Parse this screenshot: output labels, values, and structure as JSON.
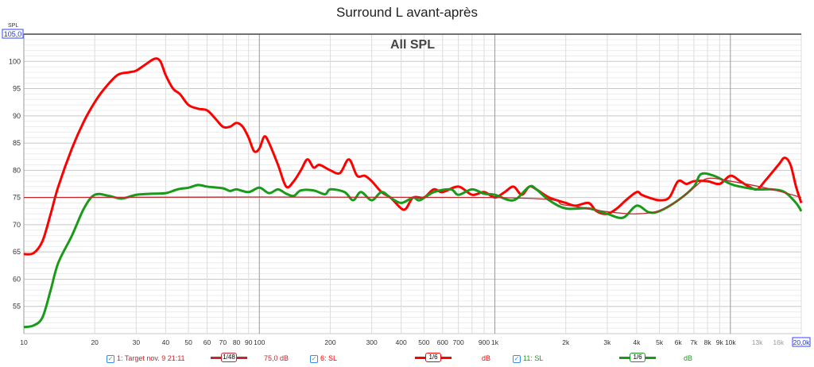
{
  "title": "Surround L avant-après",
  "chart_data": {
    "type": "line",
    "title": "All SPL",
    "ylabel": "SPL",
    "ylim": [
      50,
      105
    ],
    "ylim_top_label": "105,0",
    "xlim": [
      10,
      20000
    ],
    "xscale": "log",
    "grid": true,
    "x_tick_labels": [
      {
        "f": 10,
        "t": "10"
      },
      {
        "f": 20,
        "t": "20"
      },
      {
        "f": 30,
        "t": "30"
      },
      {
        "f": 40,
        "t": "40"
      },
      {
        "f": 50,
        "t": "50"
      },
      {
        "f": 60,
        "t": "60"
      },
      {
        "f": 70,
        "t": "70"
      },
      {
        "f": 80,
        "t": "80"
      },
      {
        "f": 90,
        "t": "90"
      },
      {
        "f": 100,
        "t": "100"
      },
      {
        "f": 200,
        "t": "200"
      },
      {
        "f": 300,
        "t": "300"
      },
      {
        "f": 400,
        "t": "400"
      },
      {
        "f": 500,
        "t": "500"
      },
      {
        "f": 600,
        "t": "600"
      },
      {
        "f": 700,
        "t": "700"
      },
      {
        "f": 900,
        "t": "900"
      },
      {
        "f": 1000,
        "t": "1k"
      },
      {
        "f": 2000,
        "t": "2k"
      },
      {
        "f": 3000,
        "t": "3k"
      },
      {
        "f": 4000,
        "t": "4k"
      },
      {
        "f": 5000,
        "t": "5k"
      },
      {
        "f": 6000,
        "t": "6k"
      },
      {
        "f": 7000,
        "t": "7k"
      },
      {
        "f": 8000,
        "t": "8k"
      },
      {
        "f": 9000,
        "t": "9k"
      },
      {
        "f": 10000,
        "t": "10k"
      },
      {
        "f": 13000,
        "t": "13k"
      },
      {
        "f": 16000,
        "t": "16k"
      },
      {
        "f": 20000,
        "t": "20,0k"
      }
    ],
    "y_ticks": [
      55,
      60,
      65,
      70,
      75,
      80,
      85,
      90,
      95,
      100
    ],
    "series": [
      {
        "name": "1: Target nov. 9 21:11",
        "color": "#c0282d",
        "width": 1.3,
        "points": [
          [
            10,
            75
          ],
          [
            1000,
            75
          ],
          [
            2000,
            73.6
          ],
          [
            3000,
            72.4
          ],
          [
            4000,
            72
          ],
          [
            5000,
            72.6
          ],
          [
            6000,
            74.5
          ],
          [
            7000,
            76.8
          ],
          [
            8000,
            78.5
          ],
          [
            10000,
            78
          ],
          [
            15000,
            76.5
          ],
          [
            20000,
            75
          ]
        ]
      },
      {
        "name": "6: SL",
        "color": "#ff0000",
        "width": 3,
        "points": [
          [
            10,
            64.6
          ],
          [
            11,
            64.8
          ],
          [
            12,
            67
          ],
          [
            13,
            72
          ],
          [
            14,
            77
          ],
          [
            16,
            84
          ],
          [
            18,
            89
          ],
          [
            20,
            92.5
          ],
          [
            22,
            95
          ],
          [
            25,
            97.5
          ],
          [
            28,
            98
          ],
          [
            30,
            98.3
          ],
          [
            33,
            99.5
          ],
          [
            36,
            100.5
          ],
          [
            38,
            100
          ],
          [
            40,
            97.5
          ],
          [
            43,
            95
          ],
          [
            46,
            94
          ],
          [
            50,
            92
          ],
          [
            55,
            91.3
          ],
          [
            60,
            91
          ],
          [
            65,
            89.5
          ],
          [
            70,
            88
          ],
          [
            75,
            88
          ],
          [
            80,
            88.7
          ],
          [
            85,
            88
          ],
          [
            90,
            86
          ],
          [
            95,
            83.5
          ],
          [
            100,
            84
          ],
          [
            105,
            86.2
          ],
          [
            110,
            85
          ],
          [
            120,
            81
          ],
          [
            130,
            77
          ],
          [
            140,
            78
          ],
          [
            150,
            80
          ],
          [
            160,
            82
          ],
          [
            170,
            80.5
          ],
          [
            180,
            81
          ],
          [
            200,
            80
          ],
          [
            220,
            79.5
          ],
          [
            240,
            82
          ],
          [
            260,
            79
          ],
          [
            280,
            79
          ],
          [
            300,
            78
          ],
          [
            330,
            76
          ],
          [
            360,
            75
          ],
          [
            400,
            73
          ],
          [
            420,
            73
          ],
          [
            450,
            75
          ],
          [
            500,
            75
          ],
          [
            550,
            76.5
          ],
          [
            600,
            76
          ],
          [
            700,
            77
          ],
          [
            800,
            75.5
          ],
          [
            900,
            76
          ],
          [
            1000,
            75
          ],
          [
            1100,
            76
          ],
          [
            1200,
            77
          ],
          [
            1300,
            75.5
          ],
          [
            1400,
            77
          ],
          [
            1500,
            76.5
          ],
          [
            1700,
            75
          ],
          [
            2000,
            74
          ],
          [
            2200,
            73.5
          ],
          [
            2500,
            74
          ],
          [
            2700,
            72.5
          ],
          [
            3000,
            72
          ],
          [
            3300,
            73
          ],
          [
            3600,
            74.5
          ],
          [
            4000,
            76
          ],
          [
            4200,
            75.5
          ],
          [
            4500,
            75
          ],
          [
            5000,
            74.5
          ],
          [
            5500,
            75
          ],
          [
            6000,
            78
          ],
          [
            6500,
            77.5
          ],
          [
            7000,
            78
          ],
          [
            8000,
            78
          ],
          [
            9000,
            77.5
          ],
          [
            10000,
            79
          ],
          [
            11000,
            78
          ],
          [
            12000,
            77
          ],
          [
            13000,
            76.5
          ],
          [
            14000,
            78
          ],
          [
            16000,
            81
          ],
          [
            17000,
            82.3
          ],
          [
            18000,
            81
          ],
          [
            19000,
            77
          ],
          [
            20000,
            74
          ]
        ]
      },
      {
        "name": "11: SL",
        "color": "#1a9a1a",
        "width": 3,
        "points": [
          [
            10,
            51.2
          ],
          [
            11,
            51.5
          ],
          [
            12,
            53
          ],
          [
            13,
            58
          ],
          [
            14,
            63
          ],
          [
            16,
            68
          ],
          [
            18,
            73
          ],
          [
            20,
            75.5
          ],
          [
            23,
            75.3
          ],
          [
            26,
            74.8
          ],
          [
            30,
            75.5
          ],
          [
            35,
            75.7
          ],
          [
            40,
            75.8
          ],
          [
            45,
            76.5
          ],
          [
            50,
            76.8
          ],
          [
            55,
            77.3
          ],
          [
            60,
            77
          ],
          [
            70,
            76.7
          ],
          [
            75,
            76.2
          ],
          [
            80,
            76.5
          ],
          [
            90,
            76
          ],
          [
            100,
            76.8
          ],
          [
            110,
            75.8
          ],
          [
            120,
            76.5
          ],
          [
            130,
            75.7
          ],
          [
            140,
            75.3
          ],
          [
            150,
            76.3
          ],
          [
            170,
            76.3
          ],
          [
            190,
            75.6
          ],
          [
            200,
            76.5
          ],
          [
            230,
            76
          ],
          [
            250,
            74.5
          ],
          [
            270,
            76
          ],
          [
            300,
            74.5
          ],
          [
            330,
            76
          ],
          [
            360,
            75
          ],
          [
            400,
            74
          ],
          [
            450,
            75
          ],
          [
            480,
            74.5
          ],
          [
            550,
            76
          ],
          [
            650,
            76.5
          ],
          [
            700,
            75.5
          ],
          [
            800,
            76.5
          ],
          [
            900,
            75.7
          ],
          [
            1000,
            75.5
          ],
          [
            1200,
            74.5
          ],
          [
            1400,
            77
          ],
          [
            1500,
            76.5
          ],
          [
            1700,
            74.5
          ],
          [
            2000,
            73
          ],
          [
            2500,
            73
          ],
          [
            3000,
            72
          ],
          [
            3500,
            71.3
          ],
          [
            4000,
            73.5
          ],
          [
            4500,
            72.3
          ],
          [
            5000,
            72.5
          ],
          [
            6000,
            74.5
          ],
          [
            7000,
            77
          ],
          [
            7500,
            79.3
          ],
          [
            8500,
            79
          ],
          [
            10000,
            77.5
          ],
          [
            11000,
            77
          ],
          [
            13000,
            76.5
          ],
          [
            15000,
            76.5
          ],
          [
            17000,
            76
          ],
          [
            19000,
            74
          ],
          [
            20000,
            72.5
          ]
        ]
      }
    ]
  },
  "legend": [
    {
      "label": "1: Target nov. 9 21:11",
      "smoothing": "1/48",
      "value": "75,0 dB",
      "color": "#c0282d"
    },
    {
      "label": "6: SL",
      "smoothing": "1/6",
      "value": "dB",
      "color": "#ff0000"
    },
    {
      "label": "11: SL",
      "smoothing": "1/6",
      "value": "dB",
      "color": "#1a9a1a"
    }
  ]
}
